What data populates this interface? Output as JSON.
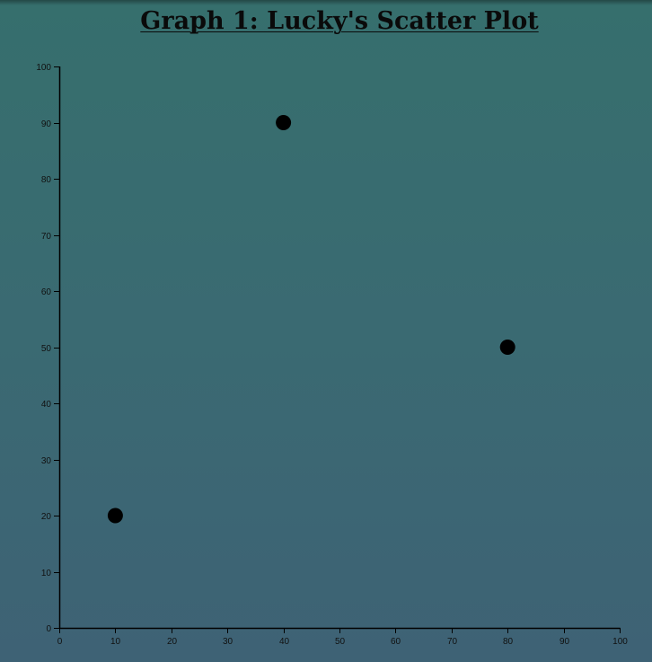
{
  "chart_data": {
    "type": "scatter",
    "title": "Graph 1: Lucky's Scatter Plot",
    "xlabel": "",
    "ylabel": "",
    "xlim": [
      0,
      100
    ],
    "ylim": [
      0,
      100
    ],
    "x_ticks": [
      0,
      10,
      20,
      30,
      40,
      50,
      60,
      70,
      80,
      90,
      100
    ],
    "y_ticks": [
      0,
      10,
      20,
      30,
      40,
      50,
      60,
      70,
      80,
      90,
      100
    ],
    "grid": false,
    "points": [
      {
        "x": 10,
        "y": 20
      },
      {
        "x": 40,
        "y": 90
      },
      {
        "x": 80,
        "y": 50
      }
    ],
    "point_color": "#000000",
    "axis_color": "#000000",
    "title_color": "#0a0a0a"
  }
}
